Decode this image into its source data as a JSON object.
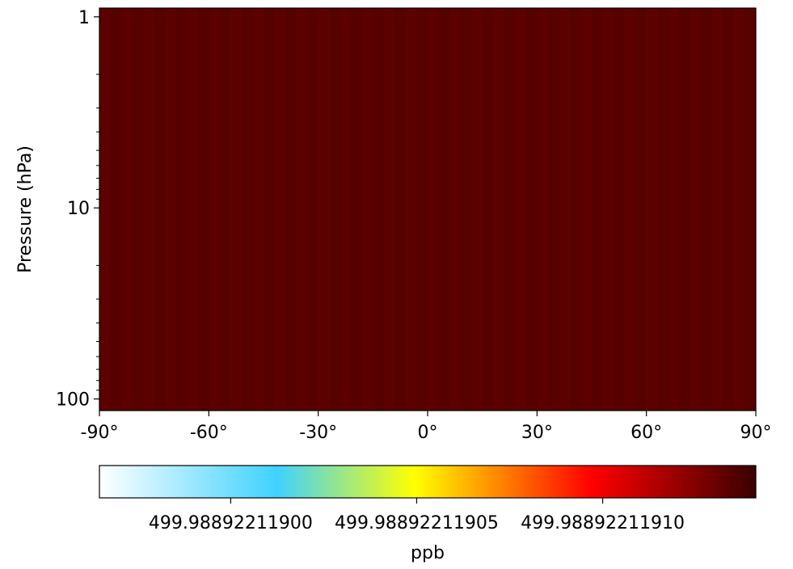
{
  "chart_data": {
    "type": "heatmap",
    "title": "",
    "xlabel": "",
    "ylabel": "Pressure (hPa)",
    "x_range": [
      -90,
      90
    ],
    "y_range": [
      1,
      100
    ],
    "y_scale": "log",
    "y_inverted": true,
    "x_ticks": [
      {
        "value": -90,
        "label": "-90°"
      },
      {
        "value": -60,
        "label": "-60°"
      },
      {
        "value": -30,
        "label": "-30°"
      },
      {
        "value": 0,
        "label": "0°"
      },
      {
        "value": 30,
        "label": "30°"
      },
      {
        "value": 60,
        "label": "60°"
      },
      {
        "value": 90,
        "label": "90°"
      }
    ],
    "y_ticks": [
      {
        "value": 1,
        "label": "1"
      },
      {
        "value": 10,
        "label": "10"
      },
      {
        "value": 100,
        "label": "100"
      }
    ],
    "field_color": "#5a0000",
    "colorbar": {
      "label": "ppb",
      "colormap": [
        "#ffffff",
        "#3fd2ff",
        "#ffff00",
        "#ff0000",
        "#3a0000"
      ],
      "ticks": [
        {
          "position": 0.2,
          "label": "499.98892211900"
        },
        {
          "position": 0.4833,
          "label": "499.98892211905"
        },
        {
          "position": 0.7667,
          "label": "499.98892211910"
        }
      ]
    }
  }
}
